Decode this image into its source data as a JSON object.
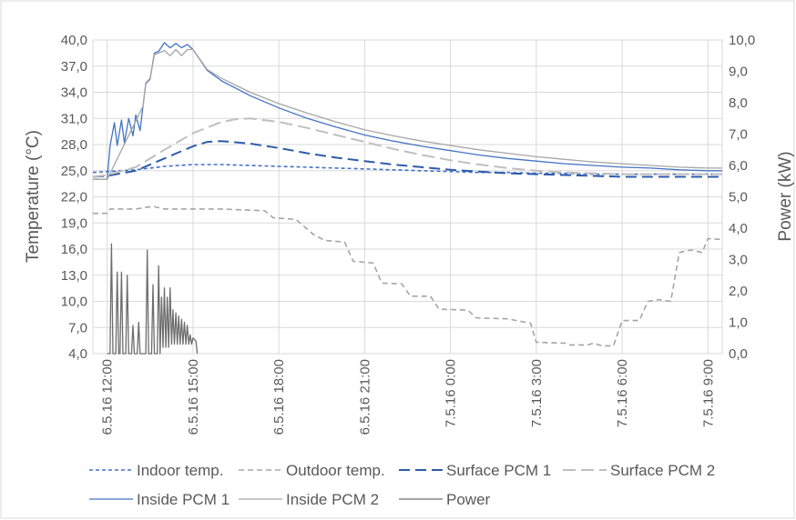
{
  "chart_data": {
    "type": "line",
    "y_left": {
      "label": "Temperature (°C)",
      "range": [
        4.0,
        40.0
      ],
      "ticks": [
        "4,0",
        "7,0",
        "10,0",
        "13,0",
        "16,0",
        "19,0",
        "22,0",
        "25,0",
        "28,0",
        "31,0",
        "34,0",
        "37,0",
        "40,0"
      ]
    },
    "y_right": {
      "label": "Power (kW)",
      "range": [
        0.0,
        10.0
      ],
      "ticks": [
        "0,0",
        "1,0",
        "2,0",
        "3,0",
        "4,0",
        "5,0",
        "6,0",
        "7,0",
        "8,0",
        "9,0",
        "10,0"
      ]
    },
    "x": {
      "range_hours": [
        0,
        21.5
      ],
      "ticks": [
        {
          "label": "6.5.16 12:00",
          "h": 0
        },
        {
          "label": "6.5.16 15:00",
          "h": 3
        },
        {
          "label": "6.5.16 18:00",
          "h": 6
        },
        {
          "label": "6.5.16 21:00",
          "h": 9
        },
        {
          "label": "7.5.16 0:00",
          "h": 12
        },
        {
          "label": "7.5.16 3:00",
          "h": 15
        },
        {
          "label": "7.5.16 6:00",
          "h": 18
        },
        {
          "label": "7.5.16 9:00",
          "h": 21
        }
      ]
    },
    "grid": true,
    "legend_position": "bottom",
    "series": [
      {
        "name": "Indoor temp.",
        "axis": "left",
        "color": "#4472c4",
        "dash": "4,3",
        "width": 1.6,
        "points": [
          [
            -0.5,
            24.8
          ],
          [
            0,
            24.9
          ],
          [
            1,
            25.1
          ],
          [
            2,
            25.5
          ],
          [
            3,
            25.7
          ],
          [
            4,
            25.7
          ],
          [
            5,
            25.6
          ],
          [
            6,
            25.5
          ],
          [
            7,
            25.4
          ],
          [
            8,
            25.3
          ],
          [
            9,
            25.2
          ],
          [
            10,
            25.1
          ],
          [
            11,
            25.0
          ],
          [
            12,
            24.9
          ],
          [
            13,
            24.8
          ],
          [
            14,
            24.8
          ],
          [
            15,
            24.7
          ],
          [
            16,
            24.7
          ],
          [
            17,
            24.6
          ],
          [
            18,
            24.6
          ],
          [
            19,
            24.6
          ],
          [
            20,
            24.6
          ],
          [
            21,
            24.6
          ],
          [
            21.5,
            24.6
          ]
        ]
      },
      {
        "name": "Outdoor temp.",
        "axis": "left",
        "color": "#a5a5a5",
        "dash": "6,4",
        "width": 1.6,
        "points": [
          [
            -0.5,
            20.1
          ],
          [
            0,
            20.1
          ],
          [
            0.1,
            20.6
          ],
          [
            1,
            20.6
          ],
          [
            1.6,
            20.9
          ],
          [
            2,
            20.6
          ],
          [
            4,
            20.6
          ],
          [
            5.5,
            20.4
          ],
          [
            5.8,
            19.6
          ],
          [
            6.6,
            19.4
          ],
          [
            7.2,
            17.7
          ],
          [
            7.6,
            17.0
          ],
          [
            8.3,
            16.8
          ],
          [
            8.6,
            14.6
          ],
          [
            9.3,
            14.4
          ],
          [
            9.6,
            12.1
          ],
          [
            10.3,
            12.0
          ],
          [
            10.6,
            10.6
          ],
          [
            11.3,
            10.6
          ],
          [
            11.6,
            9.1
          ],
          [
            12.6,
            9.0
          ],
          [
            12.9,
            8.1
          ],
          [
            14.0,
            8.0
          ],
          [
            14.3,
            7.8
          ],
          [
            14.8,
            7.5
          ],
          [
            15.0,
            5.3
          ],
          [
            16.0,
            5.2
          ],
          [
            16.2,
            5.0
          ],
          [
            16.8,
            5.0
          ],
          [
            17.0,
            5.2
          ],
          [
            17.3,
            4.9
          ],
          [
            17.7,
            4.9
          ],
          [
            18.0,
            7.8
          ],
          [
            18.6,
            7.8
          ],
          [
            18.9,
            10.0
          ],
          [
            19.3,
            10.2
          ],
          [
            19.7,
            10.0
          ],
          [
            20.0,
            15.6
          ],
          [
            20.4,
            15.9
          ],
          [
            20.8,
            15.6
          ],
          [
            21.0,
            17.2
          ],
          [
            21.5,
            17.1
          ]
        ]
      },
      {
        "name": "Surface PCM 1",
        "axis": "left",
        "color": "#2e5caa",
        "dash": "12,6",
        "width": 2,
        "points": [
          [
            -0.5,
            24.3
          ],
          [
            0,
            24.4
          ],
          [
            1,
            25.0
          ],
          [
            2,
            26.4
          ],
          [
            3,
            27.8
          ],
          [
            3.5,
            28.3
          ],
          [
            4,
            28.4
          ],
          [
            5,
            28.1
          ],
          [
            6,
            27.6
          ],
          [
            7,
            27.0
          ],
          [
            8,
            26.5
          ],
          [
            9,
            26.1
          ],
          [
            10,
            25.7
          ],
          [
            11,
            25.4
          ],
          [
            12,
            25.1
          ],
          [
            13,
            24.9
          ],
          [
            14,
            24.7
          ],
          [
            15,
            24.6
          ],
          [
            16,
            24.5
          ],
          [
            17,
            24.4
          ],
          [
            18,
            24.3
          ],
          [
            19,
            24.3
          ],
          [
            20,
            24.3
          ],
          [
            21,
            24.3
          ],
          [
            21.5,
            24.3
          ]
        ]
      },
      {
        "name": "Surface PCM 2",
        "axis": "left",
        "color": "#bfbfbf",
        "dash": "14,6",
        "width": 2,
        "points": [
          [
            -0.5,
            24.3
          ],
          [
            0,
            24.5
          ],
          [
            1,
            25.4
          ],
          [
            2,
            27.4
          ],
          [
            3,
            29.3
          ],
          [
            4,
            30.6
          ],
          [
            4.5,
            30.9
          ],
          [
            5,
            31.0
          ],
          [
            6,
            30.6
          ],
          [
            7,
            29.9
          ],
          [
            8,
            29.1
          ],
          [
            9,
            28.3
          ],
          [
            10,
            27.5
          ],
          [
            11,
            26.8
          ],
          [
            12,
            26.2
          ],
          [
            13,
            25.7
          ],
          [
            14,
            25.3
          ],
          [
            15,
            25.0
          ],
          [
            16,
            24.8
          ],
          [
            17,
            24.7
          ],
          [
            18,
            24.6
          ],
          [
            19,
            24.6
          ],
          [
            20,
            24.6
          ],
          [
            21,
            24.6
          ],
          [
            21.5,
            24.6
          ]
        ]
      },
      {
        "name": "Inside PCM 1",
        "axis": "left",
        "color": "#4472c4",
        "dash": "",
        "width": 1.3,
        "points": [
          [
            -0.5,
            24.0
          ],
          [
            0,
            24.0
          ],
          [
            0.1,
            27.8
          ],
          [
            0.25,
            30.5
          ],
          [
            0.35,
            27.9
          ],
          [
            0.5,
            30.8
          ],
          [
            0.6,
            28.2
          ],
          [
            0.75,
            31.0
          ],
          [
            0.9,
            29.0
          ],
          [
            1.0,
            31.4
          ],
          [
            1.15,
            29.6
          ],
          [
            1.25,
            32.4
          ],
          [
            1.35,
            35.0
          ],
          [
            1.5,
            35.5
          ],
          [
            1.65,
            38.5
          ],
          [
            1.8,
            38.7
          ],
          [
            2.0,
            39.7
          ],
          [
            2.2,
            39.1
          ],
          [
            2.4,
            39.6
          ],
          [
            2.6,
            39.1
          ],
          [
            2.8,
            39.5
          ],
          [
            3.0,
            38.9
          ],
          [
            3.5,
            36.5
          ],
          [
            4,
            35.3
          ],
          [
            5,
            33.6
          ],
          [
            6,
            32.2
          ],
          [
            7,
            31.0
          ],
          [
            8,
            30.0
          ],
          [
            9,
            29.1
          ],
          [
            10,
            28.4
          ],
          [
            11,
            27.8
          ],
          [
            12,
            27.3
          ],
          [
            13,
            26.8
          ],
          [
            14,
            26.4
          ],
          [
            15,
            26.1
          ],
          [
            16,
            25.8
          ],
          [
            17,
            25.6
          ],
          [
            18,
            25.4
          ],
          [
            19,
            25.3
          ],
          [
            20,
            25.1
          ],
          [
            21,
            25.0
          ],
          [
            21.5,
            25.0
          ]
        ]
      },
      {
        "name": "Inside PCM 2",
        "axis": "left",
        "color": "#a6a6a6",
        "dash": "",
        "width": 1.3,
        "points": [
          [
            -0.5,
            24.0
          ],
          [
            0,
            24.0
          ],
          [
            1.25,
            32.4
          ],
          [
            1.35,
            35.1
          ],
          [
            1.5,
            35.6
          ],
          [
            1.65,
            38.3
          ],
          [
            1.8,
            38.5
          ],
          [
            2.0,
            38.8
          ],
          [
            2.2,
            38.2
          ],
          [
            2.4,
            38.9
          ],
          [
            2.6,
            38.2
          ],
          [
            2.8,
            38.9
          ],
          [
            3.0,
            38.9
          ],
          [
            3.5,
            36.6
          ],
          [
            4,
            35.6
          ],
          [
            5,
            34.0
          ],
          [
            6,
            32.7
          ],
          [
            7,
            31.6
          ],
          [
            8,
            30.6
          ],
          [
            9,
            29.7
          ],
          [
            10,
            29.0
          ],
          [
            11,
            28.4
          ],
          [
            12,
            27.9
          ],
          [
            13,
            27.4
          ],
          [
            14,
            27.0
          ],
          [
            15,
            26.6
          ],
          [
            16,
            26.3
          ],
          [
            17,
            26.0
          ],
          [
            18,
            25.8
          ],
          [
            19,
            25.6
          ],
          [
            20,
            25.4
          ],
          [
            21,
            25.3
          ],
          [
            21.5,
            25.3
          ]
        ]
      },
      {
        "name": "Power",
        "axis": "right",
        "color": "#6d6d6d",
        "dash": "",
        "width": 1.3,
        "points": [
          [
            0,
            0
          ],
          [
            0.1,
            0
          ],
          [
            0.15,
            3.5
          ],
          [
            0.2,
            0
          ],
          [
            0.3,
            0
          ],
          [
            0.35,
            2.6
          ],
          [
            0.4,
            0
          ],
          [
            0.45,
            0
          ],
          [
            0.5,
            2.6
          ],
          [
            0.55,
            0
          ],
          [
            0.65,
            0
          ],
          [
            0.7,
            2.5
          ],
          [
            0.75,
            0
          ],
          [
            0.85,
            0
          ],
          [
            0.9,
            0.9
          ],
          [
            0.95,
            0
          ],
          [
            1.05,
            0
          ],
          [
            1.1,
            1.0
          ],
          [
            1.15,
            0
          ],
          [
            1.35,
            0
          ],
          [
            1.4,
            3.3
          ],
          [
            1.45,
            0
          ],
          [
            1.55,
            0
          ],
          [
            1.6,
            2.2
          ],
          [
            1.65,
            0
          ],
          [
            1.75,
            0
          ],
          [
            1.8,
            2.8
          ],
          [
            1.85,
            0
          ],
          [
            1.9,
            1.8
          ],
          [
            1.95,
            0.2
          ],
          [
            2.0,
            2.1
          ],
          [
            2.05,
            0.2
          ],
          [
            2.1,
            1.8
          ],
          [
            2.15,
            0.2
          ],
          [
            2.2,
            2.1
          ],
          [
            2.25,
            0.3
          ],
          [
            2.3,
            1.4
          ],
          [
            2.35,
            0.3
          ],
          [
            2.4,
            1.3
          ],
          [
            2.45,
            0.3
          ],
          [
            2.5,
            1.2
          ],
          [
            2.55,
            0.3
          ],
          [
            2.6,
            1.1
          ],
          [
            2.65,
            0.3
          ],
          [
            2.7,
            1.0
          ],
          [
            2.75,
            0.3
          ],
          [
            2.8,
            0.9
          ],
          [
            2.85,
            0.3
          ],
          [
            2.9,
            0.6
          ],
          [
            2.95,
            0.3
          ],
          [
            3.0,
            0.5
          ],
          [
            3.1,
            0.4
          ],
          [
            3.15,
            0
          ]
        ]
      }
    ]
  }
}
